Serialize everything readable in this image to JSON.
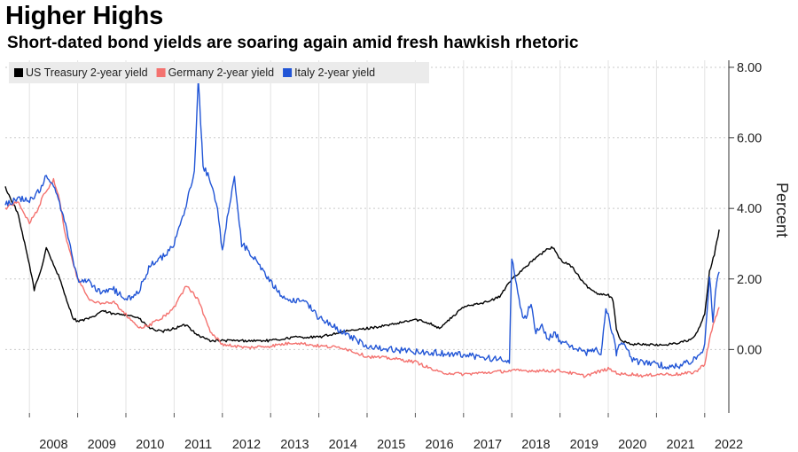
{
  "chart_data": {
    "type": "line",
    "title": "Higher Highs",
    "subtitle": "Short-dated bond yields are soaring again amid fresh hawkish rhetoric",
    "ylabel": "Percent",
    "xlabel": "",
    "xlim": [
      2007.5,
      2022.5
    ],
    "ylim": [
      -1.8,
      8.2
    ],
    "yticks": [
      0,
      2,
      4,
      6,
      8
    ],
    "ytick_labels": [
      "0.00",
      "2.00",
      "4.00",
      "6.00",
      "8.00"
    ],
    "xtick_labels": [
      "2008",
      "2009",
      "2010",
      "2011",
      "2012",
      "2013",
      "2014",
      "2015",
      "2016",
      "2017",
      "2018",
      "2019",
      "2020",
      "2021",
      "2022"
    ],
    "grid": true,
    "legend_position": "top-left",
    "series": [
      {
        "name": "US Treasury 2-year yield",
        "color": "#000000",
        "x": [
          2007.5,
          2007.6,
          2007.75,
          2007.85,
          2008.0,
          2008.1,
          2008.25,
          2008.35,
          2008.5,
          2008.6,
          2008.75,
          2008.9,
          2009.0,
          2009.3,
          2009.5,
          2009.75,
          2010.0,
          2010.25,
          2010.5,
          2010.75,
          2011.0,
          2011.25,
          2011.5,
          2011.75,
          2012.0,
          2012.5,
          2013.0,
          2013.5,
          2014.0,
          2014.5,
          2015.0,
          2015.5,
          2016.0,
          2016.3,
          2016.5,
          2016.75,
          2017.0,
          2017.25,
          2017.5,
          2017.75,
          2018.0,
          2018.25,
          2018.5,
          2018.75,
          2018.85,
          2019.0,
          2019.25,
          2019.5,
          2019.75,
          2020.0,
          2020.1,
          2020.17,
          2020.25,
          2020.5,
          2020.75,
          2021.0,
          2021.25,
          2021.5,
          2021.75,
          2021.85,
          2022.0,
          2022.1,
          2022.2,
          2022.3
        ],
        "values": [
          4.6,
          4.3,
          3.9,
          3.3,
          2.4,
          1.7,
          2.3,
          2.9,
          2.4,
          2.1,
          1.5,
          0.9,
          0.8,
          0.9,
          1.1,
          1.0,
          1.0,
          0.9,
          0.6,
          0.5,
          0.6,
          0.7,
          0.4,
          0.25,
          0.25,
          0.25,
          0.25,
          0.35,
          0.35,
          0.5,
          0.6,
          0.7,
          0.85,
          0.75,
          0.6,
          0.9,
          1.2,
          1.3,
          1.35,
          1.5,
          2.0,
          2.3,
          2.6,
          2.85,
          2.9,
          2.55,
          2.35,
          1.85,
          1.6,
          1.55,
          1.4,
          0.6,
          0.25,
          0.15,
          0.15,
          0.12,
          0.15,
          0.2,
          0.3,
          0.5,
          1.0,
          2.2,
          2.7,
          3.4
        ]
      },
      {
        "name": "Germany 2-year yield",
        "color": "#f4726f",
        "x": [
          2007.5,
          2007.75,
          2008.0,
          2008.15,
          2008.3,
          2008.5,
          2008.6,
          2008.75,
          2008.9,
          2009.0,
          2009.25,
          2009.5,
          2009.75,
          2010.0,
          2010.25,
          2010.5,
          2010.75,
          2011.0,
          2011.25,
          2011.4,
          2011.5,
          2011.75,
          2012.0,
          2012.5,
          2013.0,
          2013.5,
          2014.0,
          2014.5,
          2015.0,
          2015.5,
          2016.0,
          2016.5,
          2017.0,
          2017.5,
          2018.0,
          2018.5,
          2019.0,
          2019.5,
          2019.75,
          2020.0,
          2020.25,
          2020.5,
          2020.75,
          2021.0,
          2021.5,
          2021.75,
          2021.85,
          2022.0,
          2022.1,
          2022.2,
          2022.3
        ],
        "values": [
          4.0,
          4.2,
          3.6,
          3.9,
          4.4,
          4.8,
          4.4,
          3.2,
          2.5,
          2.0,
          1.4,
          1.3,
          1.35,
          1.0,
          0.6,
          0.7,
          0.9,
          1.2,
          1.8,
          1.6,
          1.4,
          0.5,
          0.15,
          0.05,
          0.1,
          0.2,
          0.1,
          0.05,
          -0.2,
          -0.25,
          -0.35,
          -0.65,
          -0.7,
          -0.65,
          -0.6,
          -0.6,
          -0.6,
          -0.75,
          -0.65,
          -0.55,
          -0.7,
          -0.7,
          -0.75,
          -0.7,
          -0.7,
          -0.65,
          -0.6,
          -0.4,
          0.3,
          0.8,
          1.2
        ]
      },
      {
        "name": "Italy 2-year yield",
        "color": "#2155d6",
        "x": [
          2007.5,
          2007.75,
          2008.0,
          2008.2,
          2008.35,
          2008.5,
          2008.6,
          2008.75,
          2009.0,
          2009.25,
          2009.5,
          2009.75,
          2010.0,
          2010.25,
          2010.5,
          2010.75,
          2011.0,
          2011.15,
          2011.3,
          2011.42,
          2011.5,
          2011.6,
          2011.75,
          2011.9,
          2012.0,
          2012.1,
          2012.25,
          2012.4,
          2012.6,
          2012.75,
          2013.0,
          2013.25,
          2013.5,
          2013.75,
          2014.0,
          2014.25,
          2014.5,
          2014.75,
          2015.0,
          2015.5,
          2016.0,
          2016.5,
          2017.0,
          2017.5,
          2017.95,
          2018.0,
          2018.15,
          2018.25,
          2018.4,
          2018.5,
          2018.6,
          2018.75,
          2018.9,
          2019.0,
          2019.25,
          2019.5,
          2019.75,
          2019.85,
          2019.95,
          2020.1,
          2020.17,
          2020.2,
          2020.3,
          2020.5,
          2020.75,
          2021.0,
          2021.25,
          2021.5,
          2021.75,
          2021.85,
          2022.0,
          2022.1,
          2022.17,
          2022.25,
          2022.3
        ],
        "values": [
          4.1,
          4.3,
          4.2,
          4.5,
          4.9,
          4.6,
          4.3,
          3.5,
          2.0,
          1.9,
          1.6,
          1.7,
          1.4,
          1.6,
          2.4,
          2.6,
          3.0,
          3.6,
          4.4,
          5.0,
          7.7,
          5.2,
          4.8,
          4.0,
          2.8,
          3.7,
          4.9,
          3.0,
          2.7,
          2.4,
          1.9,
          1.5,
          1.4,
          1.3,
          0.9,
          0.7,
          0.5,
          0.3,
          0.1,
          0.0,
          -0.05,
          -0.1,
          -0.15,
          -0.25,
          -0.3,
          2.6,
          1.4,
          0.8,
          1.3,
          0.5,
          0.7,
          0.3,
          0.5,
          0.2,
          0.1,
          -0.1,
          0.0,
          -0.15,
          1.2,
          0.4,
          -0.1,
          0.1,
          0.2,
          -0.3,
          -0.4,
          -0.4,
          -0.5,
          -0.45,
          -0.3,
          -0.2,
          0.1,
          2.1,
          0.8,
          2.0,
          2.2
        ]
      }
    ]
  }
}
